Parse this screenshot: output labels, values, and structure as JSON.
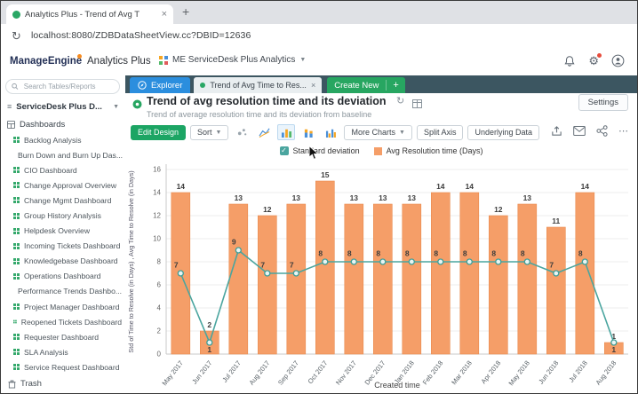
{
  "browser": {
    "tab_title": "Analytics Plus - Trend of Avg T",
    "url": "localhost:8080/ZDBDataSheetView.cc?DBID=12636"
  },
  "header": {
    "brand": "ManageEngine",
    "product": "Analytics Plus",
    "workspace_selector": "ME ServiceDesk Plus Analytics"
  },
  "tabbar": {
    "explorer": "Explorer",
    "report_tab": "Trend of Avg Time to Res...",
    "create_new": "Create New",
    "plus": "+"
  },
  "sidebar": {
    "search_placeholder": "Search Tables/Reports",
    "database": "ServiceDesk Plus D...",
    "section": "Dashboards",
    "items": [
      "Backlog Analysis",
      "Burn Down and Burn Up Das...",
      "CIO Dashboard",
      "Change Approval Overview",
      "Change Mgmt Dashboard",
      "Group History Analysis",
      "Helpdesk Overview",
      "Incoming Tickets Dashboard",
      "Knowledgebase Dashboard",
      "Operations Dashboard",
      "Performance Trends Dashbo...",
      "Project Manager Dashboard",
      "Reopened Tickets Dashboard",
      "Requester Dashboard",
      "SLA Analysis",
      "Service Request Dashboard"
    ],
    "trash": "Trash"
  },
  "report": {
    "title": "Trend of avg resolution time and its deviation",
    "subtitle": "Trend of average resolution time and its deviation from baseline",
    "settings_label": "Settings"
  },
  "toolbar": {
    "edit_design": "Edit Design",
    "sort": "Sort",
    "more_charts": "More Charts",
    "split_axis": "Split Axis",
    "underlying_data": "Underlying Data"
  },
  "chart_data": {
    "type": "bar",
    "subtype": "bar + line combo",
    "categories": [
      "May 2017",
      "Jun 2017",
      "Jul 2017",
      "Aug 2017",
      "Sep 2017",
      "Oct 2017",
      "Nov 2017",
      "Dec 2017",
      "Jan 2018",
      "Feb 2018",
      "Mar 2018",
      "Apr 2018",
      "May 2018",
      "Jun 2018",
      "Jul 2018",
      "Aug 2018"
    ],
    "series": [
      {
        "name": "Avg Resolution time (Days)",
        "type": "bar",
        "color": "#f59e68",
        "values": [
          14,
          2,
          13,
          12,
          13,
          15,
          13,
          13,
          13,
          14,
          14,
          12,
          13,
          11,
          14,
          1
        ]
      },
      {
        "name": "Standard deviation",
        "type": "line",
        "color": "#4aa59f",
        "values": [
          7,
          1,
          9,
          7,
          7,
          8,
          8,
          8,
          8,
          8,
          8,
          8,
          8,
          7,
          8,
          1
        ]
      }
    ],
    "xlabel": "Created time",
    "ylabel": "Std of Time to Resolve (in Days) , Avg Time to Resolve (in Days)",
    "ylim": [
      0,
      16
    ],
    "yticks": [
      0,
      2,
      4,
      6,
      8,
      10,
      12,
      14,
      16
    ],
    "legend_position": "top",
    "grid": true
  }
}
